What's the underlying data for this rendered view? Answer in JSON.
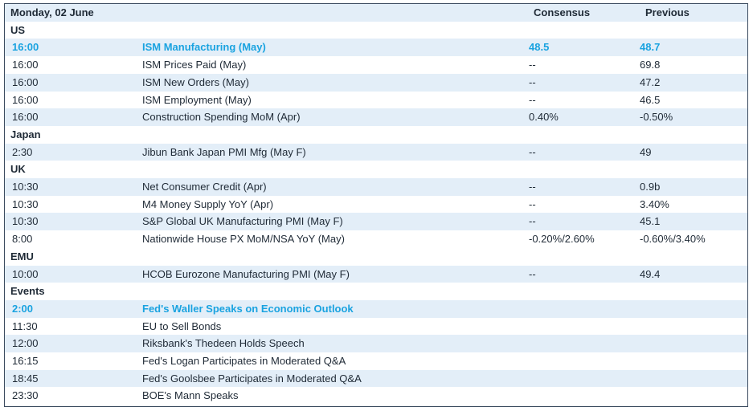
{
  "header": {
    "date": "Monday, 02 June",
    "consensus": "Consensus",
    "previous": "Previous"
  },
  "colors": {
    "band": "#e3eef8",
    "highlight": "#1aa3e0",
    "border": "#3a4a5e"
  },
  "sections": [
    {
      "name": "US",
      "rows": [
        {
          "time": "16:00",
          "event": "ISM Manufacturing (May)",
          "consensus": "48.5",
          "previous": "48.7",
          "highlight": true
        },
        {
          "time": "16:00",
          "event": "ISM Prices Paid (May)",
          "consensus": "--",
          "previous": "69.8"
        },
        {
          "time": "16:00",
          "event": "ISM New Orders (May)",
          "consensus": "--",
          "previous": "47.2"
        },
        {
          "time": "16:00",
          "event": "ISM Employment (May)",
          "consensus": "--",
          "previous": "46.5"
        },
        {
          "time": "16:00",
          "event": "Construction Spending MoM (Apr)",
          "consensus": "0.40%",
          "previous": "-0.50%"
        }
      ]
    },
    {
      "name": "Japan",
      "rows": [
        {
          "time": "2:30",
          "event": "Jibun Bank Japan PMI Mfg (May F)",
          "consensus": "--",
          "previous": "49"
        }
      ]
    },
    {
      "name": "UK",
      "rows": [
        {
          "time": "10:30",
          "event": "Net Consumer Credit (Apr)",
          "consensus": "--",
          "previous": "0.9b"
        },
        {
          "time": "10:30",
          "event": "M4 Money Supply YoY (Apr)",
          "consensus": "--",
          "previous": "3.40%"
        },
        {
          "time": "10:30",
          "event": "S&P Global UK Manufacturing PMI (May F)",
          "consensus": "--",
          "previous": "45.1"
        },
        {
          "time": "8:00",
          "event": "Nationwide House PX MoM/NSA YoY (May)",
          "consensus": "-0.20%/2.60%",
          "previous": "-0.60%/3.40%"
        }
      ]
    },
    {
      "name": "EMU",
      "rows": [
        {
          "time": "10:00",
          "event": "HCOB Eurozone Manufacturing PMI (May F)",
          "consensus": "--",
          "previous": "49.4"
        }
      ]
    },
    {
      "name": "Events",
      "rows": [
        {
          "time": "2:00",
          "event": "Fed's Waller Speaks on Economic Outlook",
          "consensus": "",
          "previous": "",
          "highlight": true
        },
        {
          "time": "11:30",
          "event": "EU to Sell Bonds",
          "consensus": "",
          "previous": ""
        },
        {
          "time": "12:00",
          "event": "Riksbank's Thedeen Holds Speech",
          "consensus": "",
          "previous": ""
        },
        {
          "time": "16:15",
          "event": "Fed's Logan Participates in Moderated Q&A",
          "consensus": "",
          "previous": ""
        },
        {
          "time": "18:45",
          "event": "Fed's Goolsbee Participates in Moderated Q&A",
          "consensus": "",
          "previous": ""
        },
        {
          "time": "23:30",
          "event": "BOE's Mann Speaks",
          "consensus": "",
          "previous": ""
        }
      ]
    }
  ]
}
